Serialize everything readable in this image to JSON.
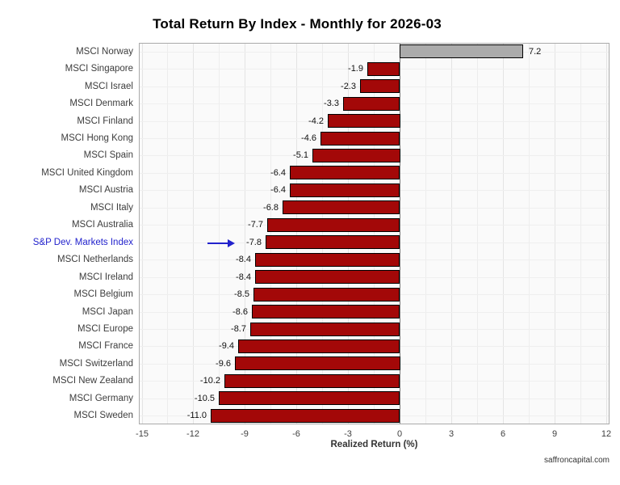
{
  "page": {
    "footer": "saffroncapital.com"
  },
  "chart_data": {
    "type": "bar",
    "orientation": "horizontal",
    "title": "Total Return By Index - Monthly for 2026-03",
    "xlabel": "Realized Return (%)",
    "ylabel": "",
    "xlim": [
      -15,
      12
    ],
    "x_ticks": [
      -15,
      -12,
      -9,
      -6,
      -3,
      0,
      3,
      6,
      9,
      12
    ],
    "x_minor_step": 1.5,
    "grid": true,
    "legend": false,
    "categories": [
      "MSCI Norway",
      "MSCI Singapore",
      "MSCI Israel",
      "MSCI Denmark",
      "MSCI Finland",
      "MSCI Hong Kong",
      "MSCI Spain",
      "MSCI United Kingdom",
      "MSCI Austria",
      "MSCI Italy",
      "MSCI Australia",
      "S&P Dev. Markets Index",
      "MSCI Netherlands",
      "MSCI Ireland",
      "MSCI Belgium",
      "MSCI Japan",
      "MSCI Europe",
      "MSCI France",
      "MSCI Switzerland",
      "MSCI New Zealand",
      "MSCI Germany",
      "MSCI Sweden"
    ],
    "values": [
      7.2,
      -1.9,
      -2.3,
      -3.3,
      -4.2,
      -4.6,
      -5.1,
      -6.4,
      -6.4,
      -6.8,
      -7.7,
      -7.8,
      -8.4,
      -8.4,
      -8.5,
      -8.6,
      -8.7,
      -9.4,
      -9.6,
      -10.2,
      -10.5,
      -11.0
    ],
    "value_labels": [
      "7.2",
      "-1.9",
      "-2.3",
      "-3.3",
      "-4.2",
      "-4.6",
      "-5.1",
      "-6.4",
      "-6.4",
      "-6.8",
      "-7.7",
      "-7.8",
      "-8.4",
      "-8.4",
      "-8.5",
      "-8.6",
      "-8.7",
      "-9.4",
      "-9.6",
      "-10.2",
      "-10.5",
      "-11.0"
    ],
    "highlight": {
      "index": 11,
      "category": "S&P Dev. Markets Index",
      "label_color": "#2222CC",
      "arrow": true
    },
    "colors": {
      "negative_fill": "#A30808",
      "positive_fill": "#ABABAB",
      "bar_border": "#000000",
      "zero_line": "#777777",
      "grid_major": "#E4E4E4",
      "grid_minor": "#EDEDED",
      "panel_bg": "#FAFAFA",
      "panel_border": "#AAAAAA"
    }
  }
}
